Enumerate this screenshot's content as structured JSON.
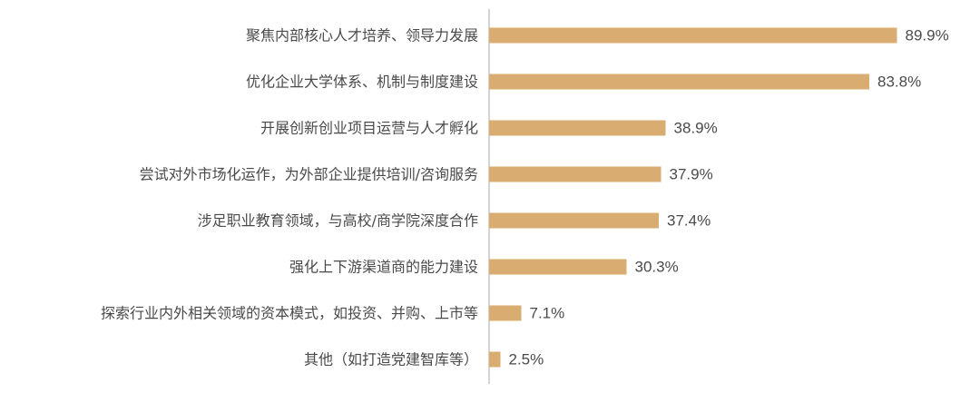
{
  "chart_data": {
    "type": "bar",
    "orientation": "horizontal",
    "title": "",
    "xlabel": "",
    "ylabel": "",
    "xlim": [
      0,
      100
    ],
    "grid": false,
    "legend": "none",
    "bar_color": "#D9AC72",
    "axis_color": "#AAAAAA",
    "text_color": "#4A4A4A",
    "value_suffix": "%",
    "categories": [
      "聚焦内部核心人才培养、领导力发展",
      "优化企业大学体系、机制与制度建设",
      "开展创新创业项目运营与人才孵化",
      "尝试对外市场化运作，为外部企业提供培训/咨询服务",
      "涉足职业教育领域，与高校/商学院深度合作",
      "强化上下游渠道商的能力建设",
      "探索行业内外相关领域的资本模式，如投资、并购、上市等",
      "其他（如打造党建智库等）"
    ],
    "values": [
      89.9,
      83.8,
      38.9,
      37.9,
      37.4,
      30.3,
      7.1,
      2.5
    ],
    "value_labels": [
      "89.9%",
      "83.8%",
      "38.9%",
      "37.9%",
      "37.4%",
      "30.3%",
      "7.1%",
      "2.5%"
    ]
  }
}
